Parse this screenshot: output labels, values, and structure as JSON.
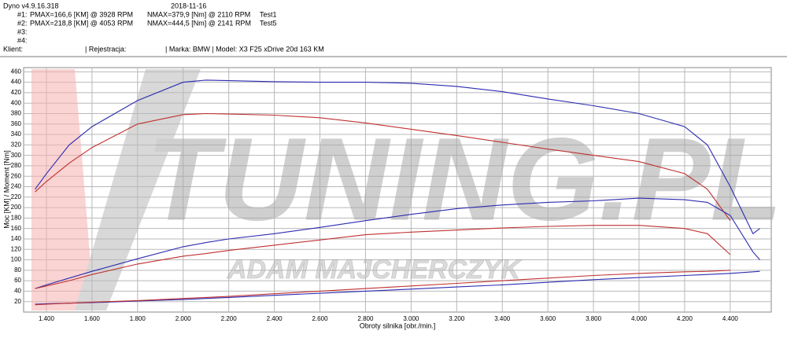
{
  "header": {
    "program": "Dyno v4.9.16.318",
    "date": "2018-11-16",
    "runs": [
      {
        "id": "#1:",
        "pmax": "PMAX=166,6 [KM] @ 3928 RPM",
        "nmax": "NMAX=379,9 [Nm] @ 2110 RPM",
        "test": "Test1"
      },
      {
        "id": "#2:",
        "pmax": "PMAX=218,8 [KM] @ 4053 RPM",
        "nmax": "NMAX=444,5 [Nm] @ 2141 RPM",
        "test": "Test5"
      },
      {
        "id": "#3:"
      },
      {
        "id": "#4:"
      }
    ],
    "client": "Klient:",
    "registration": "| Rejestracja:",
    "vehicle": "| Marka: BMW | Model: X3 F25 xDrive 20d 163 KM"
  },
  "chart_data": {
    "type": "line",
    "x_label": "Obroty silnika [obr./min.]",
    "y_label": "Moc [KM] / Moment [Nm]",
    "watermark": "TUNING.PL",
    "watermark_sub": "ADAM MAJCHERCZYK",
    "x": [
      1350,
      1400,
      1500,
      1600,
      1800,
      2000,
      2100,
      2200,
      2400,
      2600,
      2800,
      3000,
      3200,
      3400,
      3600,
      3800,
      4000,
      4200,
      4300,
      4400,
      4500,
      4530
    ],
    "series": [
      {
        "color": "#2b2bb0",
        "values": [
          235,
          265,
          320,
          355,
          405,
          440,
          444,
          443,
          441,
          440,
          440,
          438,
          432,
          422,
          408,
          395,
          380,
          355,
          320,
          240,
          150,
          160
        ]
      },
      {
        "color": "#c03030",
        "values": [
          230,
          250,
          285,
          315,
          360,
          378,
          380,
          379,
          377,
          372,
          362,
          350,
          338,
          325,
          312,
          300,
          288,
          265,
          235,
          175,
          null,
          null
        ]
      },
      {
        "color": "#2b2bb0",
        "values": [
          45,
          52,
          65,
          78,
          102,
          125,
          133,
          140,
          150,
          162,
          175,
          187,
          198,
          205,
          210,
          213,
          218,
          215,
          210,
          185,
          115,
          100
        ]
      },
      {
        "color": "#c03030",
        "values": [
          45,
          50,
          60,
          72,
          92,
          107,
          112,
          118,
          128,
          138,
          148,
          153,
          157,
          161,
          164,
          166,
          166,
          160,
          150,
          110,
          null,
          null
        ]
      },
      {
        "color": "#2b2bb0",
        "values": [
          15,
          16,
          17,
          18,
          21,
          24,
          26,
          28,
          32,
          36,
          40,
          44,
          48,
          52,
          57,
          62,
          66,
          70,
          72,
          74,
          77,
          78
        ]
      },
      {
        "color": "#c03030",
        "values": [
          14,
          15,
          17,
          19,
          22,
          26,
          28,
          30,
          35,
          40,
          45,
          50,
          55,
          60,
          65,
          70,
          74,
          77,
          78,
          80,
          null,
          null
        ]
      }
    ],
    "xlim": [
      1300,
      4580
    ],
    "ylim": [
      0,
      468
    ],
    "xticks": [
      {
        "value": 1400,
        "label": "1.400"
      },
      {
        "value": 1600,
        "label": "1.600"
      },
      {
        "value": 1800,
        "label": "1.800"
      },
      {
        "value": 2000,
        "label": "2.000"
      },
      {
        "value": 2200,
        "label": "2.200"
      },
      {
        "value": 2400,
        "label": "2.400"
      },
      {
        "value": 2600,
        "label": "2.600"
      },
      {
        "value": 2800,
        "label": "2.800"
      },
      {
        "value": 3000,
        "label": "3.000"
      },
      {
        "value": 3200,
        "label": "3.200"
      },
      {
        "value": 3400,
        "label": "3.400"
      },
      {
        "value": 3600,
        "label": "3.600"
      },
      {
        "value": 3800,
        "label": "3.800"
      },
      {
        "value": 4000,
        "label": "4.000"
      },
      {
        "value": 4200,
        "label": "4.200"
      },
      {
        "value": 4400,
        "label": "4.400"
      }
    ],
    "yticks": [
      20,
      40,
      60,
      80,
      100,
      120,
      140,
      160,
      180,
      200,
      220,
      240,
      260,
      280,
      300,
      320,
      340,
      360,
      380,
      400,
      420,
      440,
      460
    ],
    "grid": true
  }
}
